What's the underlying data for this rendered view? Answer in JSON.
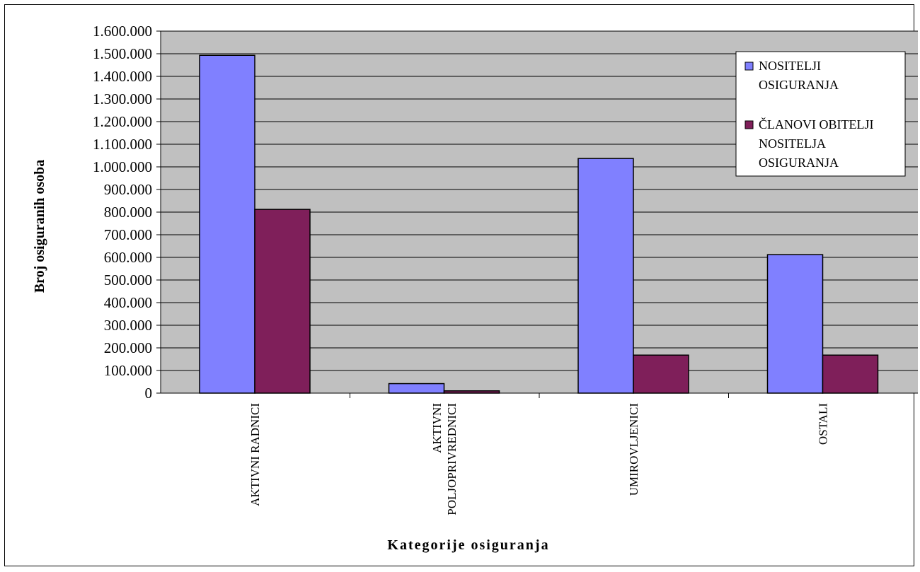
{
  "chart_data": {
    "type": "bar",
    "categories": [
      [
        "AKTIVNI RADNICI"
      ],
      [
        "AKTIVNI",
        "POLJOPRIVREDNICI"
      ],
      [
        "UMIROVLJENICI"
      ],
      [
        "OSTALI"
      ]
    ],
    "series": [
      {
        "name": [
          "NOSITELJI",
          "OSIGURANJA"
        ],
        "color": "#8080ff",
        "values": [
          1493000,
          42000,
          1037000,
          612000
        ]
      },
      {
        "name": [
          "ČLANOVI OBITELJI",
          "NOSITELJA",
          "OSIGURANJA"
        ],
        "color": "#7f1f5a",
        "values": [
          812000,
          10000,
          168000,
          168000
        ]
      }
    ],
    "xlabel": "Kategorije osiguranja",
    "ylabel": "Broj osiguranih osoba",
    "ylim": [
      0,
      1600000
    ],
    "ytick_step": 100000,
    "yticks": [
      "0",
      "100.000",
      "200.000",
      "300.000",
      "400.000",
      "500.000",
      "600.000",
      "700.000",
      "800.000",
      "900.000",
      "1.000.000",
      "1.100.000",
      "1.200.000",
      "1.300.000",
      "1.400.000",
      "1.500.000",
      "1.600.000"
    ],
    "grid": true,
    "plot_background": "#c0c0c0",
    "legend_position": "top-right"
  }
}
